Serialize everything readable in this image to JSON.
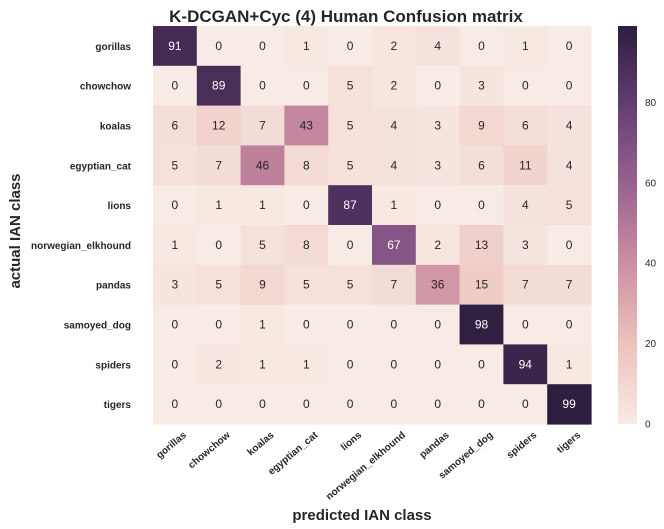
{
  "chart_data": {
    "type": "heatmap",
    "title": "K-DCGAN+Cyc (4) Human Confusion matrix",
    "xlabel": "predicted IAN class",
    "ylabel": "actual IAN class",
    "row_labels": [
      "gorillas",
      "chowchow",
      "koalas",
      "egyptian_cat",
      "lions",
      "norwegian_elkhound",
      "pandas",
      "samoyed_dog",
      "spiders",
      "tigers"
    ],
    "col_labels": [
      "gorillas",
      "chowchow",
      "koalas",
      "egyptian_cat",
      "lions",
      "norwegian_elkhound",
      "pandas",
      "samoyed_dog",
      "spiders",
      "tigers"
    ],
    "values": [
      [
        91,
        0,
        0,
        1,
        0,
        2,
        4,
        0,
        1,
        0
      ],
      [
        0,
        89,
        0,
        0,
        5,
        2,
        0,
        3,
        0,
        0
      ],
      [
        6,
        12,
        7,
        43,
        5,
        4,
        3,
        9,
        6,
        4
      ],
      [
        5,
        7,
        46,
        8,
        5,
        4,
        3,
        6,
        11,
        4
      ],
      [
        0,
        1,
        1,
        0,
        87,
        1,
        0,
        0,
        4,
        5
      ],
      [
        1,
        0,
        5,
        8,
        0,
        67,
        2,
        13,
        3,
        0
      ],
      [
        3,
        5,
        9,
        5,
        5,
        7,
        36,
        15,
        7,
        7
      ],
      [
        0,
        0,
        1,
        0,
        0,
        0,
        0,
        98,
        0,
        0
      ],
      [
        0,
        2,
        1,
        1,
        0,
        0,
        0,
        0,
        94,
        1
      ],
      [
        0,
        0,
        0,
        0,
        0,
        0,
        0,
        0,
        0,
        99
      ]
    ],
    "vmin": 0,
    "vmax": 99,
    "colorbar_ticks": [
      0,
      20,
      40,
      60,
      80
    ],
    "colormap_stops": [
      "#f8eae4",
      "#ecc3bc",
      "#cd8fa2",
      "#9a6390",
      "#643e73",
      "#2c1e3e"
    ]
  }
}
